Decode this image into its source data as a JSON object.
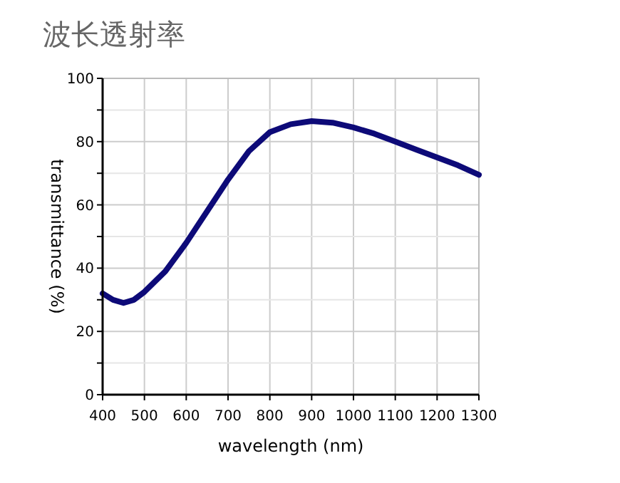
{
  "chart_data": {
    "type": "line",
    "title": "波长透射率",
    "xlabel": "wavelength (nm)",
    "ylabel": "transmittance (%)",
    "x": [
      400,
      425,
      450,
      475,
      500,
      550,
      600,
      650,
      700,
      750,
      800,
      850,
      900,
      950,
      1000,
      1050,
      1100,
      1150,
      1200,
      1250,
      1300
    ],
    "series": [
      {
        "color": "#0d0a78",
        "values": [
          32,
          30,
          29,
          30,
          32.5,
          39,
          48,
          58,
          68,
          77,
          83,
          85.5,
          86.5,
          86,
          84.5,
          82.5,
          80,
          77.5,
          75,
          72.5,
          69.5
        ]
      }
    ],
    "xlim": [
      400,
      1300
    ],
    "xticks": [
      400,
      500,
      600,
      700,
      800,
      900,
      1000,
      1100,
      1200,
      1300
    ],
    "ylim": [
      0,
      100
    ],
    "yticks": [
      0,
      {
        "value": 10,
        "label": null
      },
      20,
      {
        "value": 30,
        "label": null
      },
      40,
      {
        "value": 50,
        "label": null
      },
      60,
      {
        "value": 70,
        "label": null
      },
      80,
      {
        "value": 90,
        "label": null
      },
      100
    ],
    "grid": true,
    "marker": "none",
    "line_style": "solid"
  }
}
